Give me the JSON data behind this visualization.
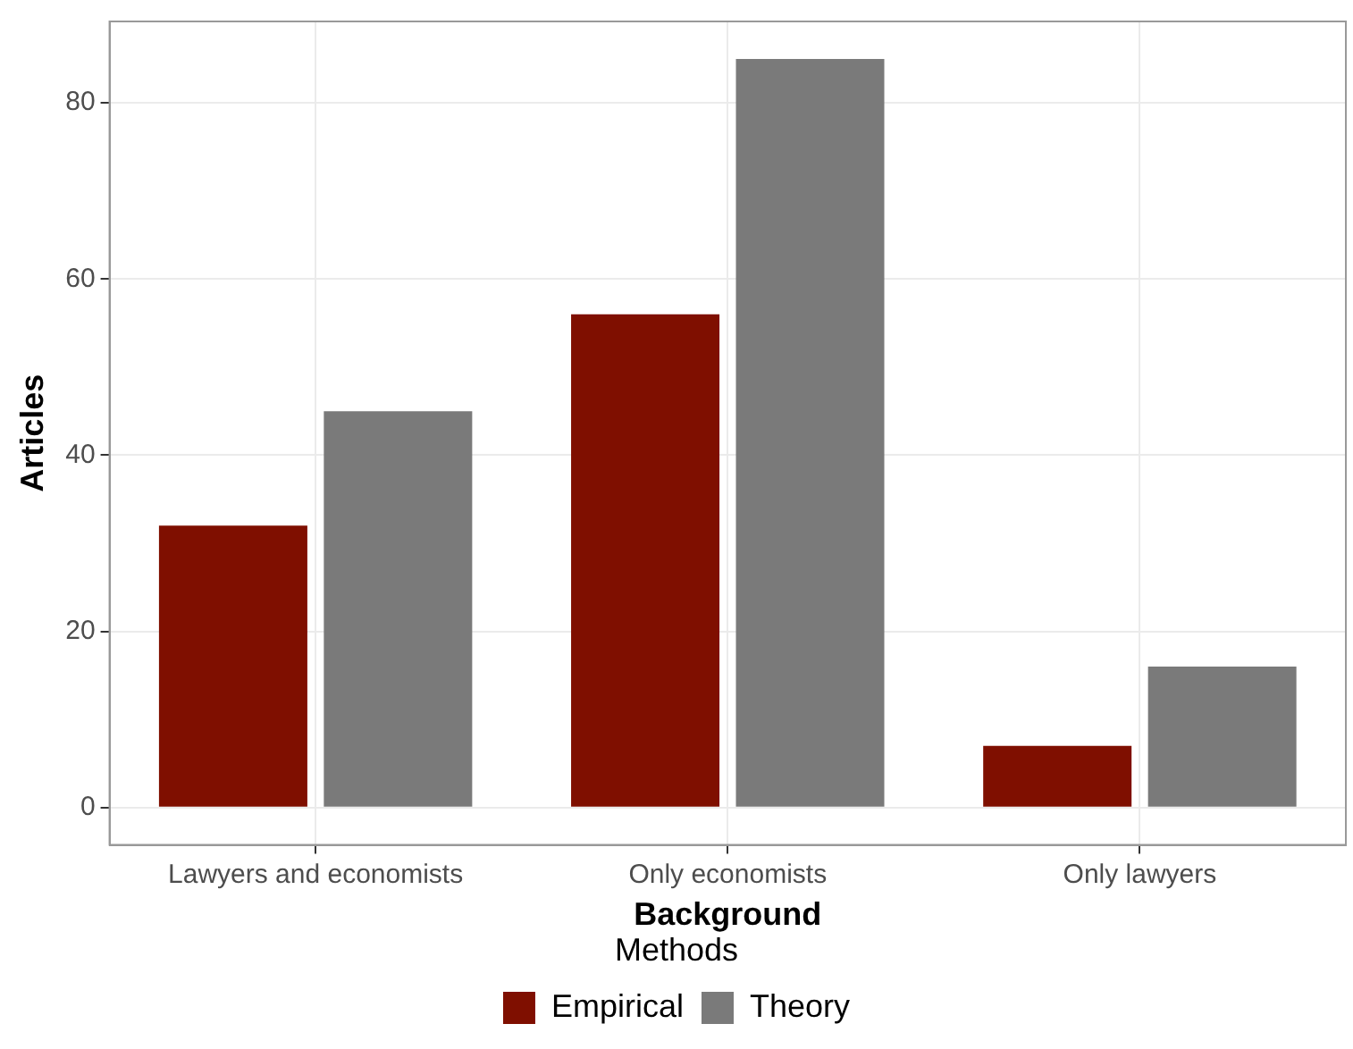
{
  "chart_data": {
    "type": "bar",
    "xlabel": "Background",
    "ylabel": "Articles",
    "legend_title": "Methods",
    "categories": [
      "Lawyers and economists",
      "Only economists",
      "Only lawyers"
    ],
    "series": [
      {
        "name": "Empirical",
        "color": "#7f0f00",
        "values": [
          32,
          56,
          7
        ]
      },
      {
        "name": "Theory",
        "color": "#7a7a7a",
        "values": [
          45,
          85,
          16
        ]
      }
    ],
    "ylim": [
      -4.25,
      89.25
    ],
    "yticks": [
      0,
      20,
      40,
      60,
      80
    ],
    "grid": true,
    "legend": "bottom"
  }
}
